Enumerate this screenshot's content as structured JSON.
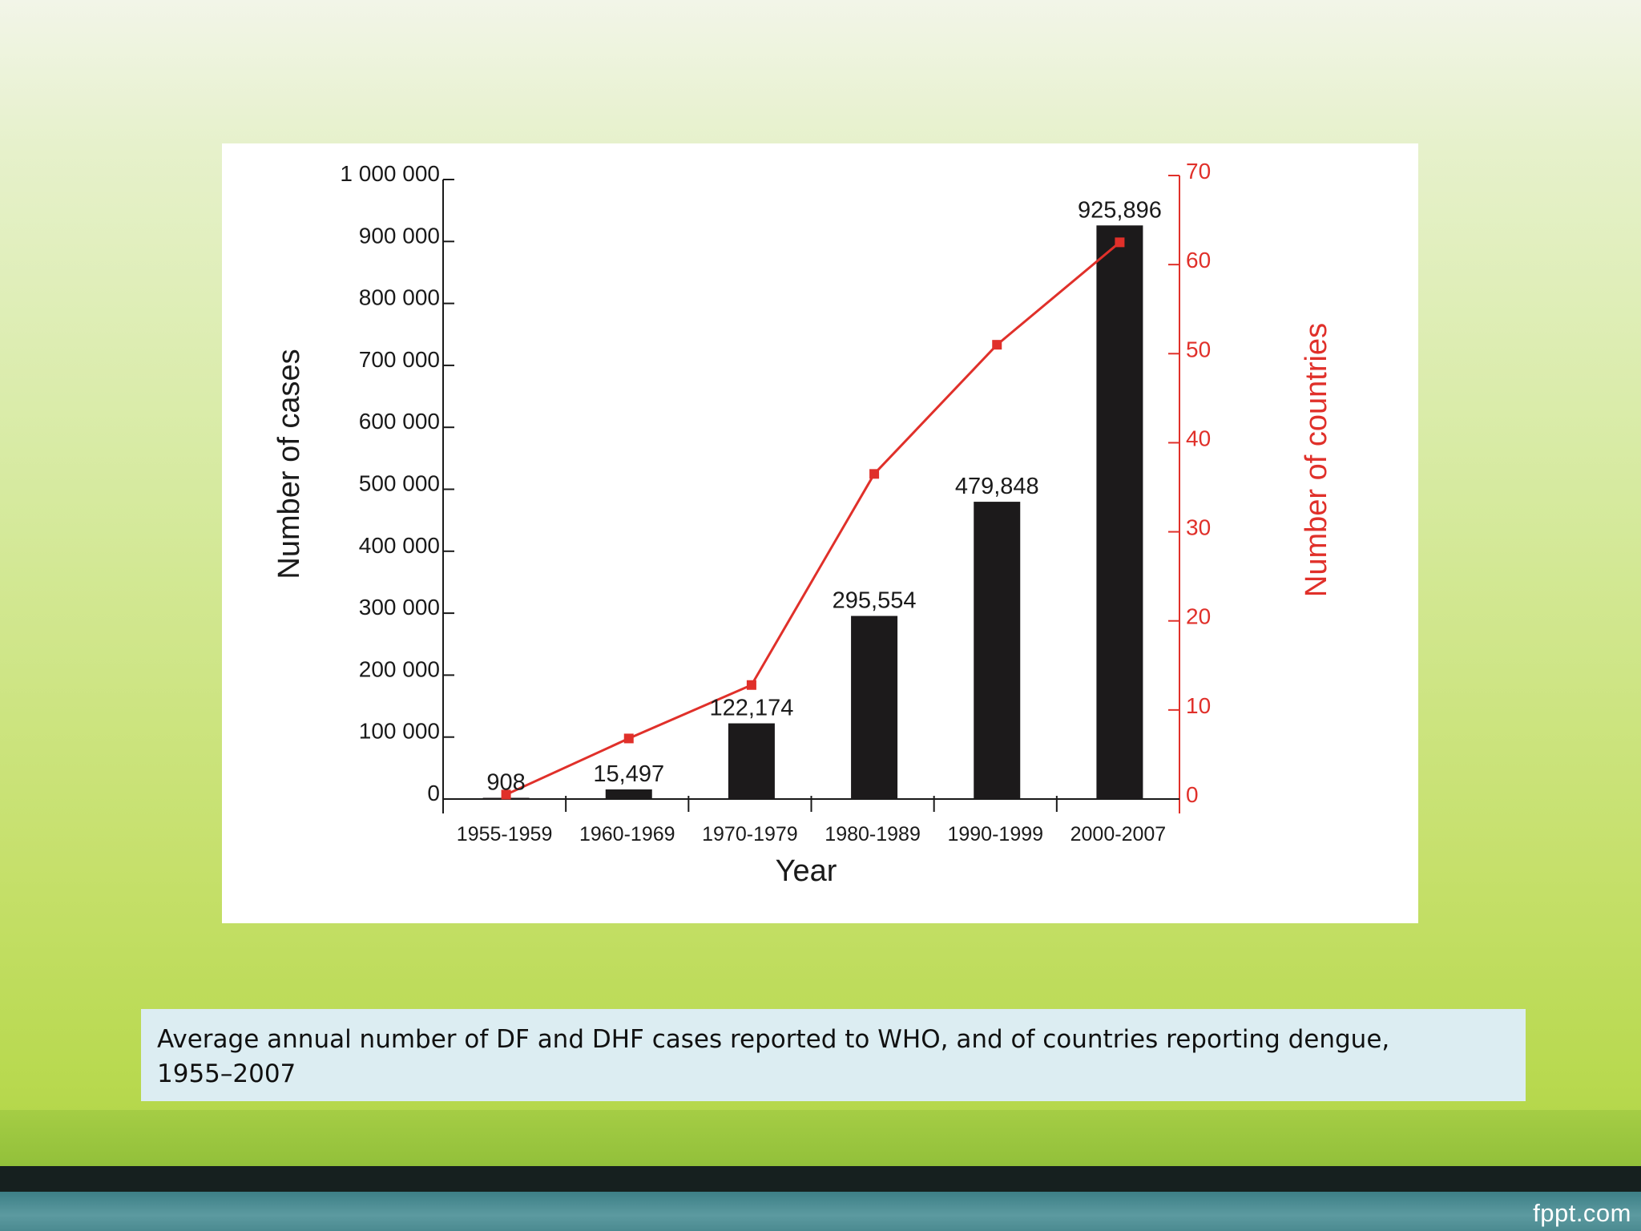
{
  "brand": {
    "text": "fppt.com"
  },
  "caption": {
    "line1": "Average annual number of DF and DHF cases reported to WHO, and of countries reporting dengue,",
    "line2": "1955–2007"
  },
  "colors": {
    "bars": "#1c1a1b",
    "line": "#e0302a",
    "caption_bg": "#dcedf2",
    "footer_dark": "#16201f",
    "footer_teal": "#4b8a90"
  },
  "chart_data": {
    "type": "bar",
    "categories": [
      "1955-1959",
      "1960-1969",
      "1970-1979",
      "1980-1989",
      "1990-1999",
      "2000-2007"
    ],
    "series": [
      {
        "name": "",
        "type": "bar",
        "axis": "left",
        "values": [
          908,
          15497,
          122174,
          295554,
          479848,
          925896
        ],
        "labels": [
          "908",
          "15,497",
          "122,174",
          "295,554",
          "479,848",
          "925,896"
        ]
      },
      {
        "name": "",
        "type": "line",
        "axis": "right",
        "values": [
          0.5,
          6.8,
          12.8,
          36.5,
          51,
          62.5
        ]
      }
    ],
    "xlabel": "Year",
    "ylabel": "Number of cases",
    "y2label": "Number of countries",
    "ylim": [
      0,
      1000000
    ],
    "y2lim": [
      0,
      70
    ],
    "yticks": [
      0,
      100000,
      200000,
      300000,
      400000,
      500000,
      600000,
      700000,
      800000,
      900000,
      1000000
    ],
    "ytick_labels": [
      "0",
      "100 000",
      "200 000",
      "300 000",
      "400 000",
      "500 000",
      "600 000",
      "700 000",
      "800 000",
      "900 000",
      "1 000 000"
    ],
    "y2ticks": [
      0,
      10,
      20,
      30,
      40,
      50,
      60,
      70
    ],
    "y2tick_labels": [
      "0",
      "10",
      "20",
      "30",
      "40",
      "50",
      "60",
      "70"
    ],
    "grid": false,
    "legend": "none"
  }
}
